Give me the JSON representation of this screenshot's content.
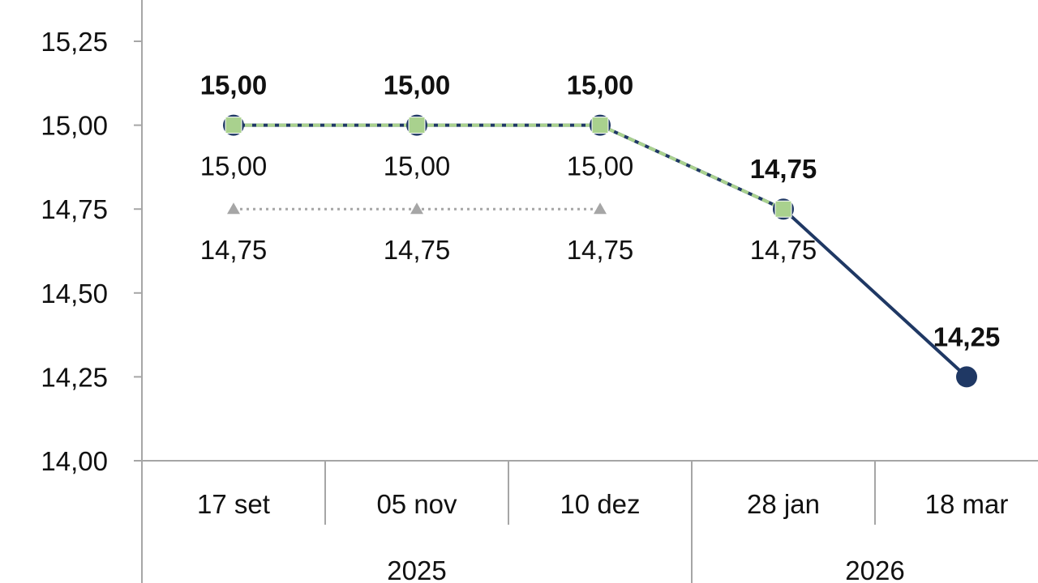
{
  "chart_data": {
    "type": "line",
    "categories": [
      "17 set",
      "05 nov",
      "10 dez",
      "28 jan",
      "18 mar"
    ],
    "category_groups": [
      {
        "label": "2025",
        "categories": [
          "17 set",
          "05 nov",
          "10 dez"
        ]
      },
      {
        "label": "2026",
        "categories": [
          "28 jan",
          "18 mar"
        ]
      }
    ],
    "ylim": [
      14.0,
      15.25
    ],
    "yticks": [
      14.0,
      14.25,
      14.5,
      14.75,
      15.0,
      15.25
    ],
    "ytick_labels": [
      "14,00",
      "14,25",
      "14,50",
      "14,75",
      "15,00",
      "15,25"
    ],
    "title": "",
    "xlabel": "",
    "ylabel": "",
    "grid": false,
    "series": [
      {
        "values": [
          15.0,
          15.0,
          15.0,
          14.75,
          14.25
        ],
        "labels": [
          "15,00",
          "15,00",
          "15,00",
          "14,75",
          "14,25"
        ],
        "color": "#1f3864",
        "marker": "circle",
        "line": "solid",
        "label_position": "above",
        "label_weight": "bold"
      },
      {
        "values": [
          15.0,
          15.0,
          15.0,
          14.75,
          null
        ],
        "labels": [
          "15,00",
          "15,00",
          "15,00",
          "14,75",
          ""
        ],
        "color": "#a9d18e",
        "marker": "square",
        "line": "dashed",
        "label_position": "below",
        "label_weight": "normal"
      },
      {
        "values": [
          14.75,
          14.75,
          14.75,
          null,
          null
        ],
        "labels": [
          "14,75",
          "14,75",
          "14,75",
          "",
          ""
        ],
        "color": "#a6a6a6",
        "marker": "triangle",
        "line": "dotted",
        "label_position": "below",
        "label_weight": "normal"
      }
    ]
  }
}
